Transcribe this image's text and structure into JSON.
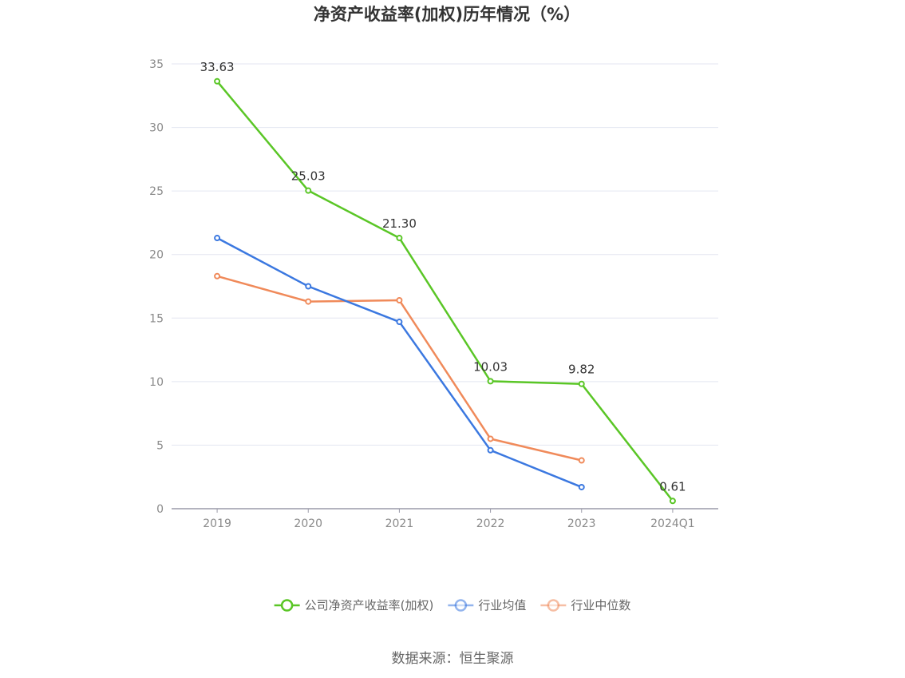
{
  "chart_data": {
    "type": "line",
    "title": "净资产收益率(加权)历年情况（%）",
    "categories": [
      "2019",
      "2020",
      "2021",
      "2022",
      "2023",
      "2024Q1"
    ],
    "ylim": [
      0,
      35
    ],
    "yticks": [
      0,
      5,
      10,
      15,
      20,
      25,
      30,
      35
    ],
    "grid": true,
    "legend_position": "bottom",
    "series": [
      {
        "name": "公司净资产收益率(加权)",
        "color": "#5ac626",
        "values": [
          33.63,
          25.03,
          21.3,
          10.03,
          9.82,
          0.61
        ],
        "labels": [
          "33.63",
          "25.03",
          "21.30",
          "10.03",
          "9.82",
          "0.61"
        ]
      },
      {
        "name": "行业均值",
        "color": "#3b78e0",
        "values": [
          21.3,
          17.5,
          14.7,
          4.6,
          1.7,
          null
        ]
      },
      {
        "name": "行业中位数",
        "color": "#f08a5a",
        "values": [
          18.3,
          16.3,
          16.4,
          5.5,
          3.8,
          null
        ]
      }
    ]
  },
  "source_text": "数据来源：恒生聚源"
}
